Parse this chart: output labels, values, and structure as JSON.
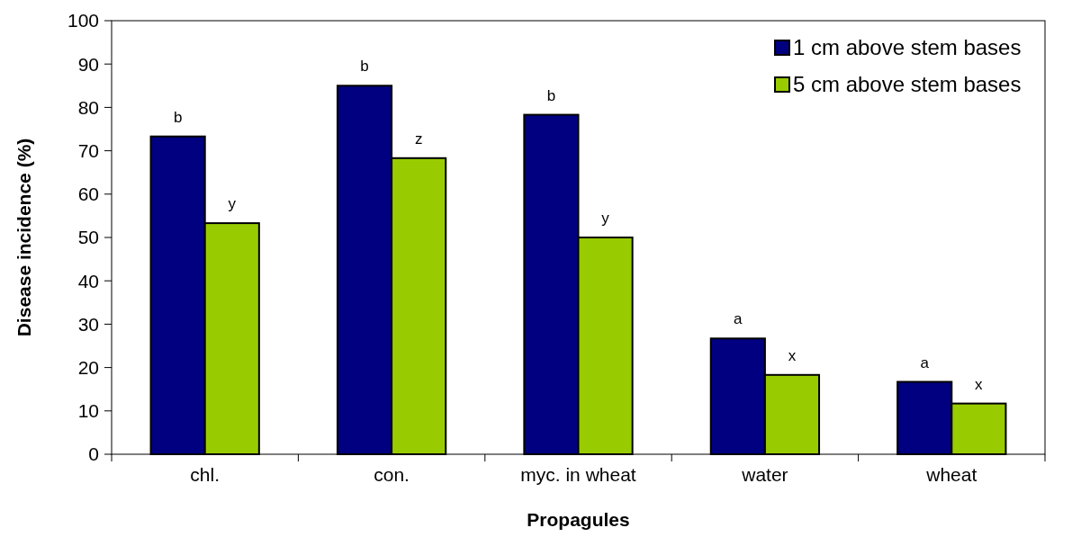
{
  "chart_data": {
    "type": "bar",
    "xlabel": "Propagules",
    "ylabel": "Disease incidence (%)",
    "categories": [
      "chl.",
      "con.",
      "myc. in wheat",
      "water",
      "wheat"
    ],
    "series": [
      {
        "name": "1 cm above stem bases",
        "color": "#000080",
        "values": [
          73.3,
          85,
          78.3,
          26.7,
          16.7
        ]
      },
      {
        "name": "5 cm above stem bases",
        "color": "#99cc00",
        "values": [
          53.3,
          68.3,
          50,
          18.3,
          11.7
        ]
      }
    ],
    "ylim": [
      0,
      100
    ],
    "yticks": [
      0,
      10,
      20,
      30,
      40,
      50,
      60,
      70,
      80,
      90,
      100
    ],
    "grid": false,
    "legend": "top right",
    "annotations": [
      {
        "text": "b",
        "x": "chl.",
        "y": 73.3
      },
      {
        "text": "y",
        "x": "chl.",
        "y": 53.3
      },
      {
        "text": "b",
        "x": "con.",
        "y": 85
      },
      {
        "text": "z",
        "x": "con.",
        "y": 68.3
      },
      {
        "text": "b",
        "x": "myc. in wheat",
        "y": 78.3
      },
      {
        "text": "y",
        "x": "myc. in wheat",
        "y": 50
      },
      {
        "text": "a",
        "x": "water",
        "y": 26.7
      },
      {
        "text": "x",
        "x": "water",
        "y": 18.3
      },
      {
        "text": "a",
        "x": "wheat",
        "y": 16.7
      },
      {
        "text": "x",
        "x": "wheat",
        "y": 11.7
      }
    ]
  }
}
